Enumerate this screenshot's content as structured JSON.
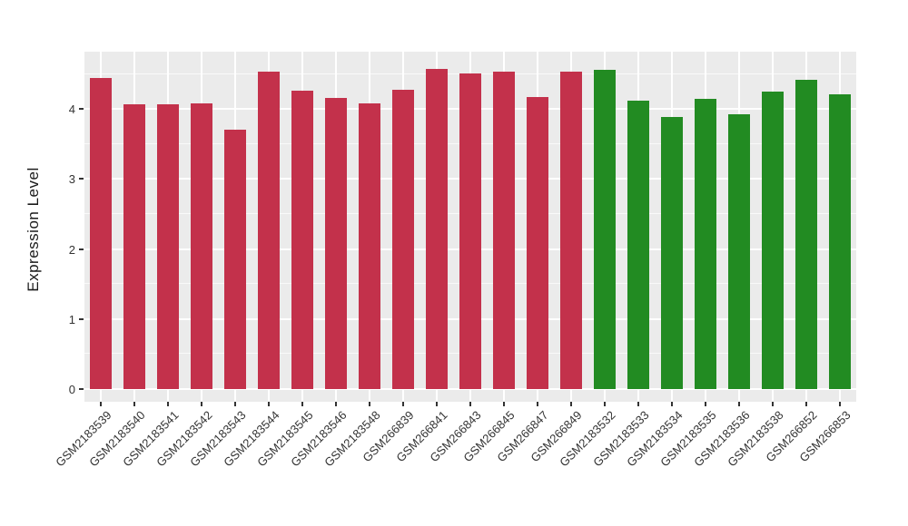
{
  "chart_data": {
    "type": "bar",
    "title": "",
    "xlabel": "",
    "ylabel": "Expression Level",
    "categories": [
      "GSM2183539",
      "GSM2183540",
      "GSM2183541",
      "GSM2183542",
      "GSM2183543",
      "GSM2183544",
      "GSM2183545",
      "GSM2183546",
      "GSM2183548",
      "GSM266839",
      "GSM266841",
      "GSM266843",
      "GSM266845",
      "GSM266847",
      "GSM266849",
      "GSM2183532",
      "GSM2183533",
      "GSM2183534",
      "GSM2183535",
      "GSM2183536",
      "GSM2183538",
      "GSM266852",
      "GSM266853"
    ],
    "values": [
      4.44,
      4.07,
      4.07,
      4.08,
      3.7,
      4.54,
      4.26,
      4.16,
      4.08,
      4.28,
      4.57,
      4.51,
      4.54,
      4.17,
      4.53,
      4.56,
      4.12,
      3.89,
      4.15,
      3.93,
      4.25,
      4.42,
      4.21
    ],
    "bar_groups": [
      "red",
      "red",
      "red",
      "red",
      "red",
      "red",
      "red",
      "red",
      "red",
      "red",
      "red",
      "red",
      "red",
      "red",
      "red",
      "green",
      "green",
      "green",
      "green",
      "green",
      "green",
      "green",
      "green"
    ],
    "group_colors": {
      "red": "#C3314B",
      "green": "#228B22"
    },
    "yticks": [
      0,
      1,
      2,
      3,
      4
    ],
    "minor_yticks": [
      0.5,
      1.5,
      2.5,
      3.5,
      4.5
    ],
    "ylim": [
      0,
      4.8
    ],
    "grid": "white major and minor horizontal lines, white vertical line per category, on gray panel",
    "panel_background": "#EBEBEB",
    "gridline_color": "#FFFFFF",
    "axis_text_color": "#333333",
    "legend": "none"
  }
}
